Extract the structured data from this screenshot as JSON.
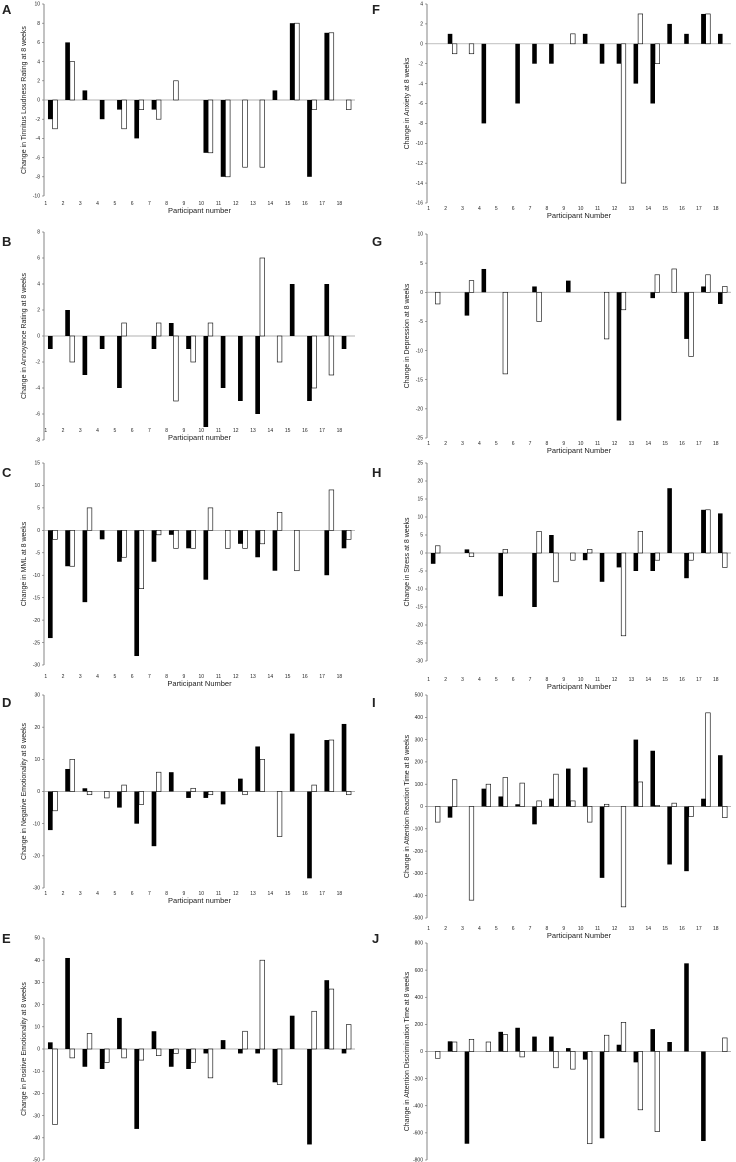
{
  "chart_data": [
    {
      "panel": "A",
      "type": "bar",
      "ylabel": "Change in Tinnitus Loudness Rating at 8 weeks",
      "xlabel": "Participant number",
      "ylim": [
        -10,
        10
      ],
      "yticks": [
        10,
        8,
        6,
        4,
        2,
        0,
        -2,
        -4,
        -6,
        -8,
        -10
      ],
      "categories": [
        "1",
        "2",
        "3",
        "4",
        "5",
        "6",
        "7",
        "8",
        "9",
        "10",
        "11",
        "12",
        "13",
        "14",
        "15",
        "16",
        "17",
        "18"
      ],
      "series": [
        {
          "color": "#000000",
          "values": [
            -2,
            6,
            1,
            -2,
            -1,
            -4,
            -1,
            0,
            0,
            -5.5,
            -8,
            0,
            0,
            1,
            8,
            -8,
            7,
            0
          ]
        },
        {
          "color": "#ffffff",
          "values": [
            -3,
            4,
            0,
            0,
            -3,
            -1,
            -2,
            2,
            0,
            -5.5,
            -8,
            -7,
            -7,
            0,
            8,
            -1,
            7,
            -1
          ]
        }
      ]
    },
    {
      "panel": "B",
      "type": "bar",
      "ylabel": "Change in Annoyance Rating at 8 weeks",
      "xlabel": "Participant number",
      "ylim": [
        -8,
        8
      ],
      "yticks": [
        8,
        6,
        4,
        2,
        0,
        -2,
        -4,
        -6,
        -8
      ],
      "categories": [
        "1",
        "2",
        "3",
        "4",
        "5",
        "6",
        "7",
        "8",
        "9",
        "10",
        "11",
        "12",
        "13",
        "14",
        "15",
        "16",
        "17",
        "18"
      ],
      "series": [
        {
          "color": "#000000",
          "values": [
            -1,
            2,
            -3,
            -1,
            -4,
            0,
            -1,
            1,
            -1,
            -7,
            -4,
            -5,
            -6,
            0,
            4,
            -5,
            4,
            -1
          ]
        },
        {
          "color": "#ffffff",
          "values": [
            0,
            -2,
            0,
            0,
            1,
            0,
            1,
            -5,
            -2,
            1,
            0,
            0,
            6,
            -2,
            0,
            -4,
            -3,
            0
          ]
        }
      ]
    },
    {
      "panel": "C",
      "type": "bar",
      "ylabel": "Change in MML at 8 weeks",
      "xlabel": "Participant Number",
      "ylim": [
        -30,
        15
      ],
      "yticks": [
        15,
        10,
        5,
        0,
        -5,
        -10,
        -15,
        -20,
        -25,
        -30
      ],
      "categories": [
        "1",
        "2",
        "3",
        "4",
        "5",
        "6",
        "7",
        "8",
        "9",
        "10",
        "11",
        "12",
        "13",
        "14",
        "15",
        "16",
        "17",
        "18"
      ],
      "series": [
        {
          "color": "#000000",
          "values": [
            -24,
            -8,
            -16,
            -2,
            -7,
            -28,
            -7,
            -1,
            -4,
            -11,
            0,
            -3,
            -6,
            -9,
            0,
            0,
            -10,
            -4
          ]
        },
        {
          "color": "#ffffff",
          "values": [
            -2,
            -8,
            5,
            0,
            -6,
            -13,
            -1,
            -4,
            -4,
            5,
            -4,
            -4,
            -3,
            4,
            -9,
            0,
            9,
            -2
          ]
        }
      ]
    },
    {
      "panel": "D",
      "type": "bar",
      "ylabel": "Change in Negative Emotionality at 8 weeks",
      "xlabel": "Participant number",
      "ylim": [
        -30,
        30
      ],
      "yticks": [
        30,
        20,
        10,
        0,
        -10,
        -20,
        -30
      ],
      "categories": [
        "1",
        "2",
        "3",
        "4",
        "5",
        "6",
        "7",
        "8",
        "9",
        "10",
        "11",
        "12",
        "13",
        "14",
        "15",
        "16",
        "17",
        "18"
      ],
      "series": [
        {
          "color": "#000000",
          "values": [
            -12,
            7,
            1,
            0,
            -5,
            -10,
            -17,
            6,
            -2,
            -2,
            -4,
            4,
            14,
            0,
            18,
            -27,
            16,
            21
          ]
        },
        {
          "color": "#ffffff",
          "values": [
            -6,
            10,
            -1,
            -2,
            2,
            -4,
            6,
            0,
            1,
            -1,
            0,
            -1,
            10,
            -14,
            0,
            2,
            16,
            -1
          ]
        }
      ]
    },
    {
      "panel": "E",
      "type": "bar",
      "ylabel": "Change in Positive Emotionality at 8 weeks",
      "xlabel": "",
      "ylim": [
        -50,
        50
      ],
      "yticks": [
        50,
        40,
        30,
        20,
        10,
        0,
        -10,
        -20,
        -30,
        -40,
        -50
      ],
      "categories": [
        "1",
        "2",
        "3",
        "4",
        "5",
        "6",
        "7",
        "8",
        "9",
        "10",
        "11",
        "12",
        "13",
        "14",
        "15",
        "16",
        "17",
        "18"
      ],
      "series": [
        {
          "color": "#000000",
          "values": [
            3,
            41,
            -8,
            -9,
            14,
            -36,
            8,
            -8,
            -9,
            -2,
            4,
            -2,
            -2,
            -15,
            15,
            -43,
            31,
            -2
          ]
        },
        {
          "color": "#ffffff",
          "values": [
            -34,
            -4,
            7,
            -6,
            -4,
            -5,
            -3,
            -2,
            -6,
            -13,
            0,
            8,
            40,
            -16,
            0,
            17,
            27,
            11
          ]
        }
      ]
    },
    {
      "panel": "F",
      "type": "bar",
      "ylabel": "Change in Anxiety at 8 weeks",
      "xlabel": "Participant Number",
      "ylim": [
        -16,
        4
      ],
      "yticks": [
        4,
        2,
        0,
        -2,
        -4,
        -6,
        -8,
        -10,
        -12,
        -14,
        -16
      ],
      "categories": [
        "1",
        "2",
        "3",
        "4",
        "5",
        "6",
        "7",
        "8",
        "9",
        "10",
        "11",
        "12",
        "13",
        "14",
        "15",
        "16",
        "17",
        "18"
      ],
      "series": [
        {
          "color": "#000000",
          "values": [
            0,
            1,
            0,
            -8,
            0,
            -6,
            -2,
            -2,
            0,
            1,
            -2,
            -2,
            -4,
            -6,
            2,
            1,
            3,
            1
          ]
        },
        {
          "color": "#ffffff",
          "values": [
            0,
            -1,
            -1,
            0,
            0,
            0,
            0,
            0,
            1,
            0,
            0,
            -14,
            3,
            -2,
            0,
            0,
            3,
            0
          ]
        }
      ]
    },
    {
      "panel": "G",
      "type": "bar",
      "ylabel": "Change in Depression at 8 weeks",
      "xlabel": "Participant Number",
      "ylim": [
        -25,
        10
      ],
      "yticks": [
        10,
        5,
        0,
        -5,
        -10,
        -15,
        -20,
        -25
      ],
      "categories": [
        "1",
        "2",
        "3",
        "4",
        "5",
        "6",
        "7",
        "8",
        "9",
        "10",
        "11",
        "12",
        "13",
        "14",
        "15",
        "16",
        "17",
        "18"
      ],
      "series": [
        {
          "color": "#000000",
          "values": [
            0,
            0,
            -4,
            4,
            0,
            0,
            1,
            0,
            2,
            0,
            0,
            -22,
            0,
            -1,
            0,
            -8,
            1,
            -2
          ]
        },
        {
          "color": "#ffffff",
          "values": [
            -2,
            0,
            2,
            0,
            -14,
            0,
            -5,
            0,
            0,
            0,
            -8,
            -3,
            0,
            3,
            4,
            -11,
            3,
            1
          ]
        }
      ]
    },
    {
      "panel": "H",
      "type": "bar",
      "ylabel": "Change in Stress at 8 weeks",
      "xlabel": "Participant Number",
      "ylim": [
        -30,
        25
      ],
      "yticks": [
        25,
        20,
        15,
        10,
        5,
        0,
        -5,
        -10,
        -15,
        -20,
        -25,
        -30
      ],
      "categories": [
        "1",
        "2",
        "3",
        "4",
        "5",
        "6",
        "7",
        "8",
        "9",
        "10",
        "11",
        "12",
        "13",
        "14",
        "15",
        "16",
        "17",
        "18"
      ],
      "series": [
        {
          "color": "#000000",
          "values": [
            -3,
            0,
            1,
            0,
            -12,
            0,
            -15,
            5,
            0,
            -2,
            -8,
            -4,
            -5,
            -5,
            18,
            -7,
            12,
            11
          ]
        },
        {
          "color": "#ffffff",
          "values": [
            2,
            0,
            -1,
            0,
            1,
            0,
            6,
            -8,
            -2,
            1,
            0,
            -23,
            6,
            -2,
            0,
            -2,
            12,
            -4
          ]
        }
      ]
    },
    {
      "panel": "I",
      "type": "bar",
      "ylabel": "Change in Attention Reaction Time at 8 weeks",
      "xlabel": "Participant Number",
      "ylim": [
        -500,
        500
      ],
      "yticks": [
        500,
        400,
        300,
        200,
        100,
        0,
        -100,
        -200,
        -300,
        -400,
        -500
      ],
      "categories": [
        "1",
        "2",
        "3",
        "4",
        "5",
        "6",
        "7",
        "8",
        "9",
        "10",
        "11",
        "12",
        "13",
        "14",
        "15",
        "16",
        "17",
        "18"
      ],
      "series": [
        {
          "color": "#000000",
          "values": [
            0,
            -50,
            0,
            80,
            45,
            10,
            -80,
            35,
            170,
            175,
            -320,
            0,
            300,
            250,
            -260,
            -290,
            35,
            230
          ]
        },
        {
          "color": "#ffffff",
          "values": [
            -70,
            120,
            -420,
            100,
            130,
            105,
            25,
            145,
            25,
            -70,
            10,
            -450,
            110,
            5,
            15,
            -45,
            420,
            -50
          ]
        }
      ]
    },
    {
      "panel": "J",
      "type": "bar",
      "ylabel": "Change in Attention Discrimination Time at 8 weeks",
      "xlabel": "",
      "ylim": [
        -800,
        800
      ],
      "yticks": [
        800,
        600,
        400,
        200,
        0,
        -200,
        -400,
        -600,
        -800
      ],
      "categories": [
        "1",
        "2",
        "3",
        "4",
        "5",
        "6",
        "7",
        "8",
        "9",
        "10",
        "11",
        "12",
        "13",
        "14",
        "15",
        "16",
        "17",
        "18"
      ],
      "series": [
        {
          "color": "#000000",
          "values": [
            0,
            75,
            -680,
            0,
            145,
            175,
            110,
            110,
            25,
            -60,
            -640,
            50,
            -80,
            165,
            70,
            650,
            -660,
            0
          ]
        },
        {
          "color": "#ffffff",
          "values": [
            -50,
            70,
            90,
            70,
            125,
            -40,
            0,
            -120,
            -130,
            -680,
            120,
            215,
            -430,
            -590,
            0,
            0,
            0,
            100
          ]
        }
      ]
    }
  ]
}
